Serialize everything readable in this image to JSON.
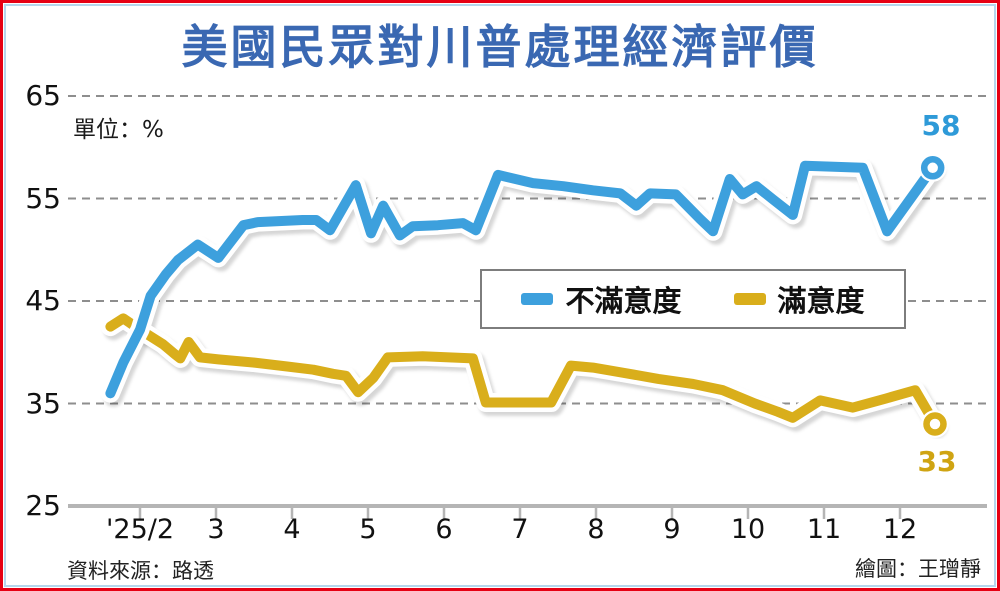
{
  "frame": {
    "outer_border_color": "#e60013",
    "inner_border_color": "#b5d6ec"
  },
  "title": "美國民眾對川普處理經濟評價",
  "title_color": "#3a68b2",
  "unit_label": "單位：%",
  "footer": {
    "source": "資料來源：路透",
    "credit": "繪圖：王璔靜"
  },
  "legend": {
    "items": [
      {
        "label": "不滿意度",
        "color": "#3da0dd"
      },
      {
        "label": "滿意度",
        "color": "#d9ae1b"
      }
    ]
  },
  "end_labels": {
    "dissatisfaction": "58",
    "satisfaction": "33"
  },
  "chart_data": {
    "type": "line",
    "title": "美國民眾對川普處理經濟評價",
    "unit": "%",
    "ylim": [
      25,
      65
    ],
    "y_ticks": [
      65,
      55,
      45,
      35,
      25
    ],
    "x_ticks": [
      {
        "label": "'25/2",
        "month": 2
      },
      {
        "label": "3",
        "month": 3
      },
      {
        "label": "4",
        "month": 4
      },
      {
        "label": "5",
        "month": 5
      },
      {
        "label": "6",
        "month": 6
      },
      {
        "label": "7",
        "month": 7
      },
      {
        "label": "8",
        "month": 8
      },
      {
        "label": "9",
        "month": 9
      },
      {
        "label": "10",
        "month": 10
      },
      {
        "label": "11",
        "month": 11
      },
      {
        "label": "12",
        "month": 12
      }
    ],
    "grid": "horizontal-dashed",
    "legend_position": "boxed, center-right of plot",
    "source": "資料來源：路透",
    "credit": "繪圖：王璔靜",
    "series": [
      {
        "name": "不滿意度",
        "color": "#3da0dd",
        "end_label": "58",
        "end_value": 58,
        "points": [
          [
            1.61,
            36.0
          ],
          [
            1.78,
            39.0
          ],
          [
            2.0,
            42.2
          ],
          [
            2.14,
            45.5
          ],
          [
            2.34,
            47.6
          ],
          [
            2.5,
            49.0
          ],
          [
            2.76,
            50.5
          ],
          [
            3.03,
            49.2
          ],
          [
            3.36,
            52.4
          ],
          [
            3.55,
            52.7
          ],
          [
            4.14,
            52.9
          ],
          [
            4.32,
            52.9
          ],
          [
            4.5,
            51.9
          ],
          [
            4.84,
            56.3
          ],
          [
            5.04,
            51.6
          ],
          [
            5.2,
            54.3
          ],
          [
            5.42,
            51.4
          ],
          [
            5.59,
            52.3
          ],
          [
            5.92,
            52.4
          ],
          [
            6.25,
            52.6
          ],
          [
            6.42,
            51.9
          ],
          [
            6.71,
            57.3
          ],
          [
            7.17,
            56.5
          ],
          [
            7.57,
            56.2
          ],
          [
            7.96,
            55.8
          ],
          [
            8.32,
            55.5
          ],
          [
            8.53,
            54.3
          ],
          [
            8.71,
            55.5
          ],
          [
            9.05,
            55.4
          ],
          [
            9.37,
            53.0
          ],
          [
            9.54,
            51.8
          ],
          [
            9.76,
            56.9
          ],
          [
            9.93,
            55.4
          ],
          [
            10.11,
            56.2
          ],
          [
            10.33,
            54.9
          ],
          [
            10.59,
            53.4
          ],
          [
            10.75,
            58.2
          ],
          [
            11.51,
            58.0
          ],
          [
            11.83,
            51.8
          ],
          [
            12.43,
            58.0
          ]
        ]
      },
      {
        "name": "滿意度",
        "color": "#d9ae1b",
        "end_label": "33",
        "end_value": 33,
        "points": [
          [
            1.61,
            42.5
          ],
          [
            1.78,
            43.3
          ],
          [
            2.0,
            42.2
          ],
          [
            2.3,
            40.8
          ],
          [
            2.46,
            39.8
          ],
          [
            2.53,
            39.4
          ],
          [
            2.64,
            41.0
          ],
          [
            2.79,
            39.5
          ],
          [
            3.03,
            39.3
          ],
          [
            3.49,
            39.0
          ],
          [
            3.95,
            38.6
          ],
          [
            4.28,
            38.3
          ],
          [
            4.54,
            37.9
          ],
          [
            4.71,
            37.7
          ],
          [
            4.87,
            36.1
          ],
          [
            5.07,
            37.5
          ],
          [
            5.26,
            39.5
          ],
          [
            5.72,
            39.6
          ],
          [
            6.38,
            39.4
          ],
          [
            6.55,
            35.1
          ],
          [
            7.41,
            35.1
          ],
          [
            7.67,
            38.7
          ],
          [
            7.96,
            38.5
          ],
          [
            8.36,
            38.0
          ],
          [
            8.82,
            37.4
          ],
          [
            9.28,
            36.9
          ],
          [
            9.67,
            36.3
          ],
          [
            10.09,
            35.0
          ],
          [
            10.39,
            34.2
          ],
          [
            10.59,
            33.6
          ],
          [
            10.95,
            35.3
          ],
          [
            11.38,
            34.6
          ],
          [
            11.82,
            35.5
          ],
          [
            12.2,
            36.3
          ],
          [
            12.46,
            33.0
          ]
        ]
      }
    ]
  }
}
